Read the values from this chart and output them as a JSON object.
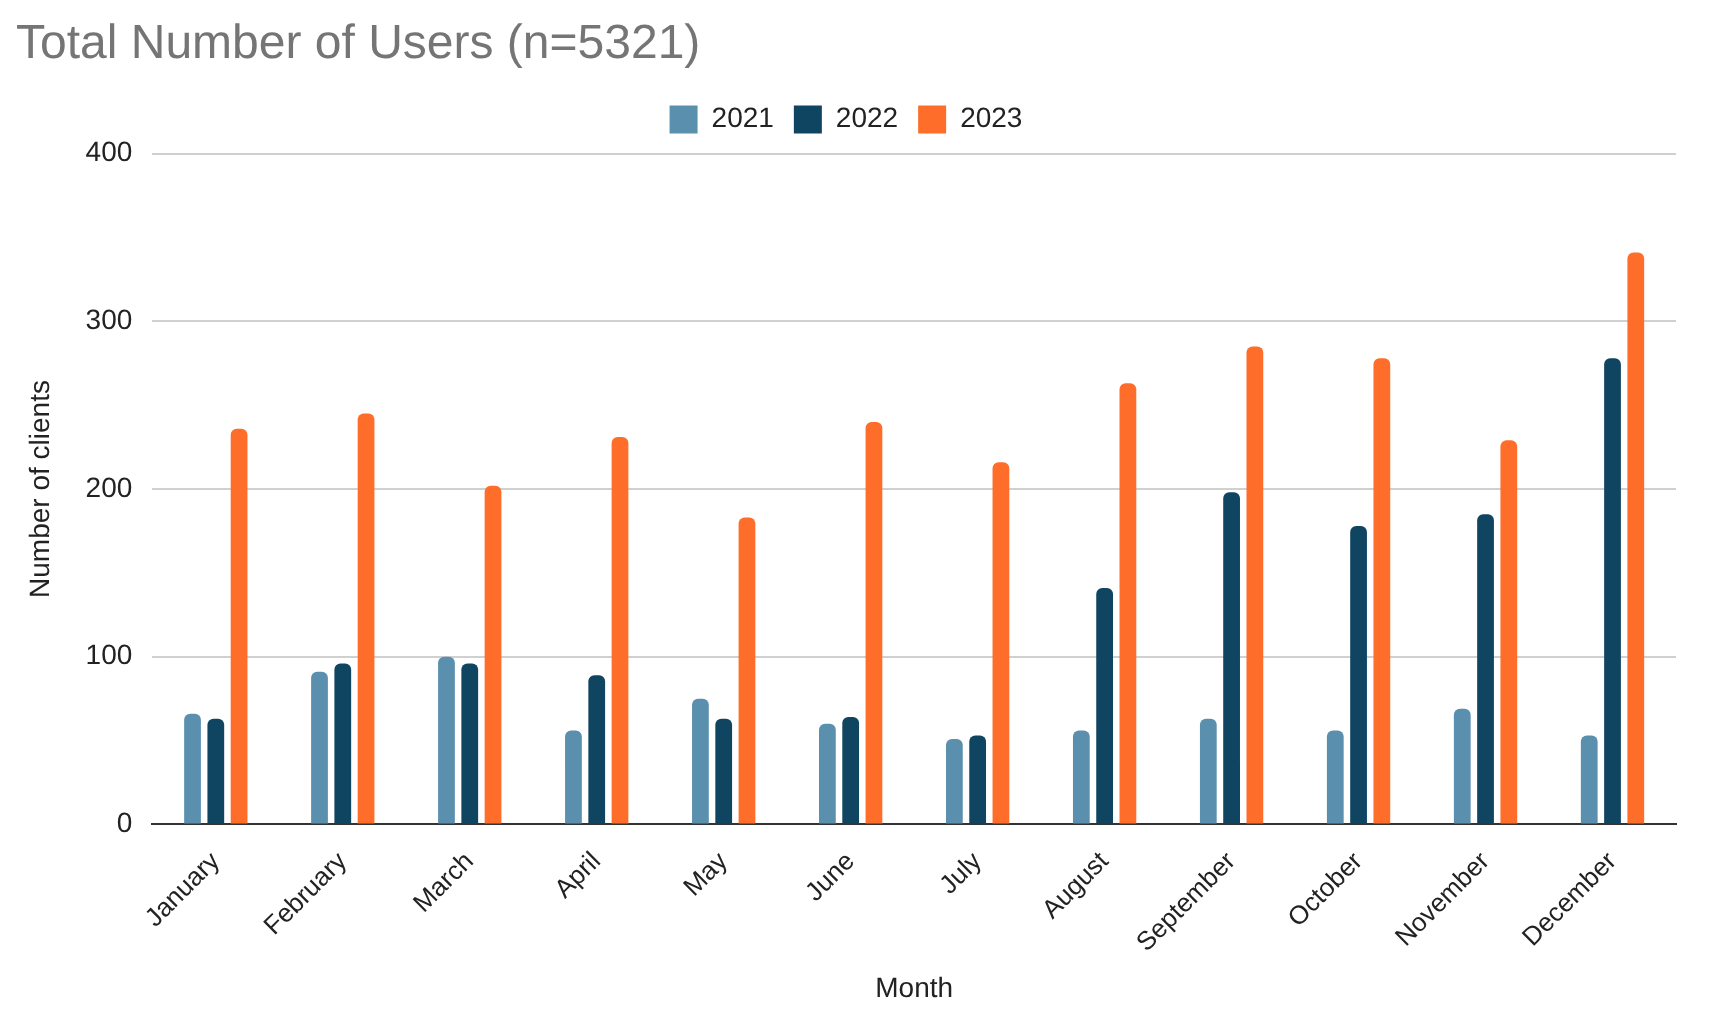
{
  "chart_data": {
    "type": "bar",
    "title": "Total Number of Users (n=5321)",
    "xlabel": "Month",
    "ylabel": "Number of clients",
    "categories": [
      "January",
      "February",
      "March",
      "April",
      "May",
      "June",
      "July",
      "August",
      "September",
      "October",
      "November",
      "December"
    ],
    "series": [
      {
        "name": "2021",
        "color": "#5b8fae",
        "values": [
          66,
          91,
          100,
          56,
          75,
          60,
          51,
          56,
          63,
          56,
          69,
          53
        ]
      },
      {
        "name": "2022",
        "color": "#0f4561",
        "values": [
          63,
          96,
          96,
          89,
          63,
          64,
          53,
          141,
          198,
          178,
          185,
          278
        ]
      },
      {
        "name": "2023",
        "color": "#ff6d2b",
        "values": [
          236,
          245,
          202,
          231,
          183,
          240,
          216,
          263,
          285,
          278,
          229,
          341
        ]
      }
    ],
    "ylim": [
      0,
      400
    ],
    "yticks": [
      0,
      100,
      200,
      300,
      400
    ],
    "grid": "y",
    "legend": "top"
  }
}
